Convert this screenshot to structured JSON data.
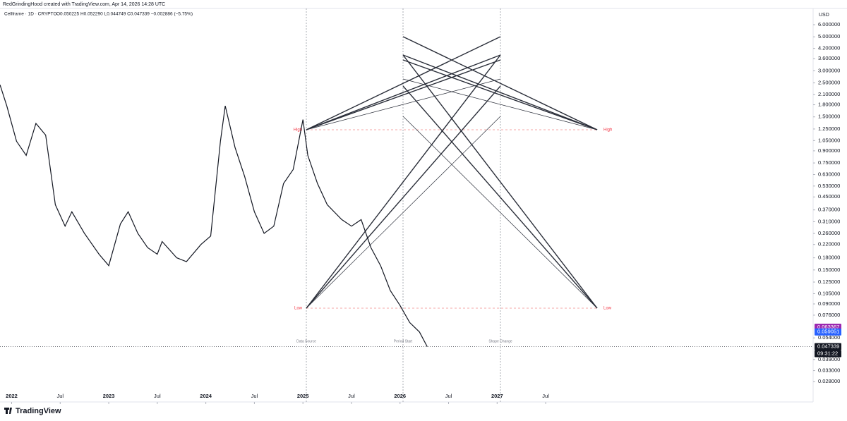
{
  "header": "RedGrindingHood created with TradingView.com, Apr 14, 2026 14:28 UTC",
  "brand": "TradingView",
  "chart_data": {
    "type": "line",
    "title": "Cellframe · 1D · CRYPTO",
    "subtitle": "O0.050225  H0.052290  L0.044749  C0.047339  −0.002886 (−5.75%)",
    "currency": "USD",
    "log_scale": true,
    "grid": false,
    "color": "#131722",
    "x": [
      2021.88,
      2021.95,
      2022.05,
      2022.15,
      2022.25,
      2022.35,
      2022.45,
      2022.55,
      2022.62,
      2022.75,
      2022.9,
      2023.0,
      2023.12,
      2023.2,
      2023.3,
      2023.4,
      2023.5,
      2023.55,
      2023.7,
      2023.8,
      2023.95,
      2024.05,
      2024.15,
      2024.2,
      2024.3,
      2024.4,
      2024.5,
      2024.6,
      2024.7,
      2024.8,
      2024.9,
      2025.0,
      2025.05,
      2025.15,
      2025.25,
      2025.4,
      2025.5,
      2025.6,
      2025.7,
      2025.8,
      2025.9,
      2026.0,
      2026.1,
      2026.2,
      2026.28
    ],
    "values": [
      2.43,
      1.77,
      1.04,
      0.84,
      1.36,
      1.14,
      0.4,
      0.29,
      0.36,
      0.26,
      0.19,
      0.16,
      0.3,
      0.36,
      0.26,
      0.21,
      0.19,
      0.23,
      0.18,
      0.17,
      0.22,
      0.25,
      1.04,
      1.77,
      0.95,
      0.61,
      0.36,
      0.26,
      0.29,
      0.55,
      0.68,
      1.44,
      0.84,
      0.55,
      0.4,
      0.32,
      0.29,
      0.32,
      0.21,
      0.16,
      0.11,
      0.088,
      0.068,
      0.059,
      0.047339
    ],
    "xlim": [
      2021.88,
      2030.24
    ],
    "ylim": [
      0.0206,
      7.66
    ],
    "xticks": [
      {
        "value": 2022,
        "label": "2022"
      },
      {
        "value": 2022.5,
        "label": "Jul"
      },
      {
        "value": 2023,
        "label": "2023"
      },
      {
        "value": 2023.5,
        "label": "Jul"
      },
      {
        "value": 2024,
        "label": "2024"
      },
      {
        "value": 2024.5,
        "label": "Jul"
      },
      {
        "value": 2025,
        "label": "2025"
      },
      {
        "value": 2025.5,
        "label": "Jul"
      },
      {
        "value": 2026,
        "label": "2026"
      },
      {
        "value": 2026.5,
        "label": "Jul"
      },
      {
        "value": 2027,
        "label": "2027"
      },
      {
        "value": 2027.5,
        "label": "Jul"
      }
    ],
    "yticks": [
      {
        "value": 6,
        "label": "6.000000"
      },
      {
        "value": 5,
        "label": "5.000000"
      },
      {
        "value": 4.2,
        "label": "4.200000"
      },
      {
        "value": 3.6,
        "label": "3.600000"
      },
      {
        "value": 3,
        "label": "3.000000"
      },
      {
        "value": 2.5,
        "label": "2.500000"
      },
      {
        "value": 2.1,
        "label": "2.100000"
      },
      {
        "value": 1.8,
        "label": "1.800000"
      },
      {
        "value": 1.5,
        "label": "1.500000"
      },
      {
        "value": 1.25,
        "label": "1.250000"
      },
      {
        "value": 1.05,
        "label": "1.050000"
      },
      {
        "value": 0.9,
        "label": "0.900000"
      },
      {
        "value": 0.75,
        "label": "0.750000"
      },
      {
        "value": 0.63,
        "label": "0.630000"
      },
      {
        "value": 0.53,
        "label": "0.530000"
      },
      {
        "value": 0.45,
        "label": "0.450000"
      },
      {
        "value": 0.37,
        "label": "0.370000"
      },
      {
        "value": 0.31,
        "label": "0.310000"
      },
      {
        "value": 0.26,
        "label": "0.260000"
      },
      {
        "value": 0.22,
        "label": "0.220000"
      },
      {
        "value": 0.18,
        "label": "0.180000"
      },
      {
        "value": 0.15,
        "label": "0.150000"
      },
      {
        "value": 0.125,
        "label": "0.125000"
      },
      {
        "value": 0.105,
        "label": "0.105000"
      },
      {
        "value": 0.09,
        "label": "0.090000"
      },
      {
        "value": 0.076,
        "label": "0.076000"
      },
      {
        "value": 0.054,
        "label": "0.054000"
      },
      {
        "value": 0.039,
        "label": "0.039000"
      },
      {
        "value": 0.033,
        "label": "0.033000"
      },
      {
        "value": 0.028,
        "label": "0.028000"
      }
    ],
    "price_labels": [
      {
        "value": 0.063367,
        "label": "0.063367",
        "color": "#9c27b0"
      },
      {
        "value": 0.059051,
        "label": "0.059051",
        "color": "#2962ff"
      },
      {
        "value": 0.047339,
        "label": "0.047339",
        "color": "#131722"
      }
    ],
    "countdown": "09:31:22",
    "annotations": [
      "High",
      "Low",
      "High",
      "Low",
      "Data Source",
      "Period Start",
      "Shape Change"
    ]
  }
}
